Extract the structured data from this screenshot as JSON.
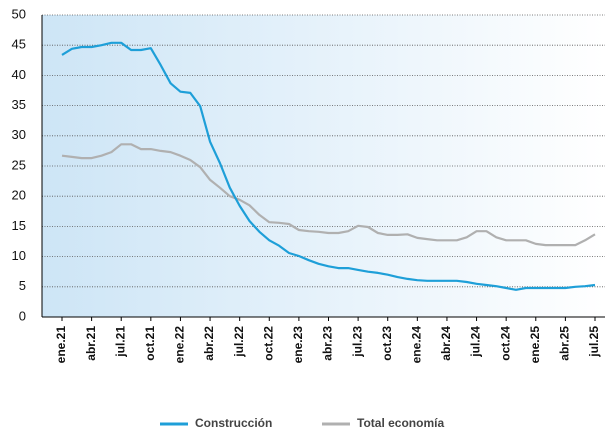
{
  "chart_data": {
    "type": "line",
    "categories": [
      "ene.21",
      null,
      null,
      "abr.21",
      null,
      null,
      "jul.21",
      null,
      null,
      "oct.21",
      null,
      null,
      "ene.22",
      null,
      null,
      "abr.22",
      null,
      null,
      "jul.22",
      null,
      null,
      "oct.22",
      null,
      null,
      "ene.23",
      null,
      null,
      "abr.23",
      null,
      null,
      "jul.23",
      null,
      null,
      "oct.23",
      null,
      null,
      "ene.24",
      null,
      null,
      "abr.24",
      null,
      null,
      "jul.24",
      null,
      null,
      "oct.24",
      null,
      null,
      "ene.25",
      null,
      null,
      "abr.25",
      null,
      null,
      "jul.25"
    ],
    "series": [
      {
        "name": "Construcción",
        "color": "#1e9fd8",
        "values": [
          43.4,
          44.4,
          44.7,
          44.7,
          45.0,
          45.4,
          45.4,
          44.2,
          44.2,
          44.5,
          41.7,
          38.7,
          37.3,
          37.1,
          34.9,
          29.0,
          25.5,
          21.4,
          18.4,
          15.9,
          14.1,
          12.7,
          11.8,
          10.6,
          10.1,
          9.4,
          8.8,
          8.4,
          8.1,
          8.1,
          7.8,
          7.5,
          7.3,
          7.0,
          6.6,
          6.3,
          6.1,
          6.0,
          6.0,
          6.0,
          6.0,
          5.8,
          5.5,
          5.3,
          5.1,
          4.8,
          4.5,
          4.8,
          4.8,
          4.8,
          4.8,
          4.8,
          5.0,
          5.1,
          5.3
        ]
      },
      {
        "name": "Total economía",
        "color": "#b0b0b0",
        "values": [
          26.7,
          26.5,
          26.3,
          26.3,
          26.7,
          27.3,
          28.6,
          28.6,
          27.8,
          27.8,
          27.5,
          27.3,
          26.7,
          26.0,
          24.8,
          22.7,
          21.4,
          20.0,
          19.4,
          18.5,
          16.9,
          15.7,
          15.6,
          15.4,
          14.4,
          14.2,
          14.1,
          13.9,
          13.9,
          14.2,
          15.1,
          14.9,
          13.9,
          13.6,
          13.6,
          13.7,
          13.1,
          12.9,
          12.7,
          12.7,
          12.7,
          13.2,
          14.2,
          14.2,
          13.2,
          12.7,
          12.7,
          12.7,
          12.1,
          11.9,
          11.9,
          11.9,
          11.9,
          12.7,
          13.7
        ]
      }
    ],
    "ylim": [
      0,
      50
    ],
    "yticks": [
      0,
      5,
      10,
      15,
      20,
      25,
      30,
      35,
      40,
      45,
      50
    ],
    "grid": true,
    "legend": "bottom"
  }
}
